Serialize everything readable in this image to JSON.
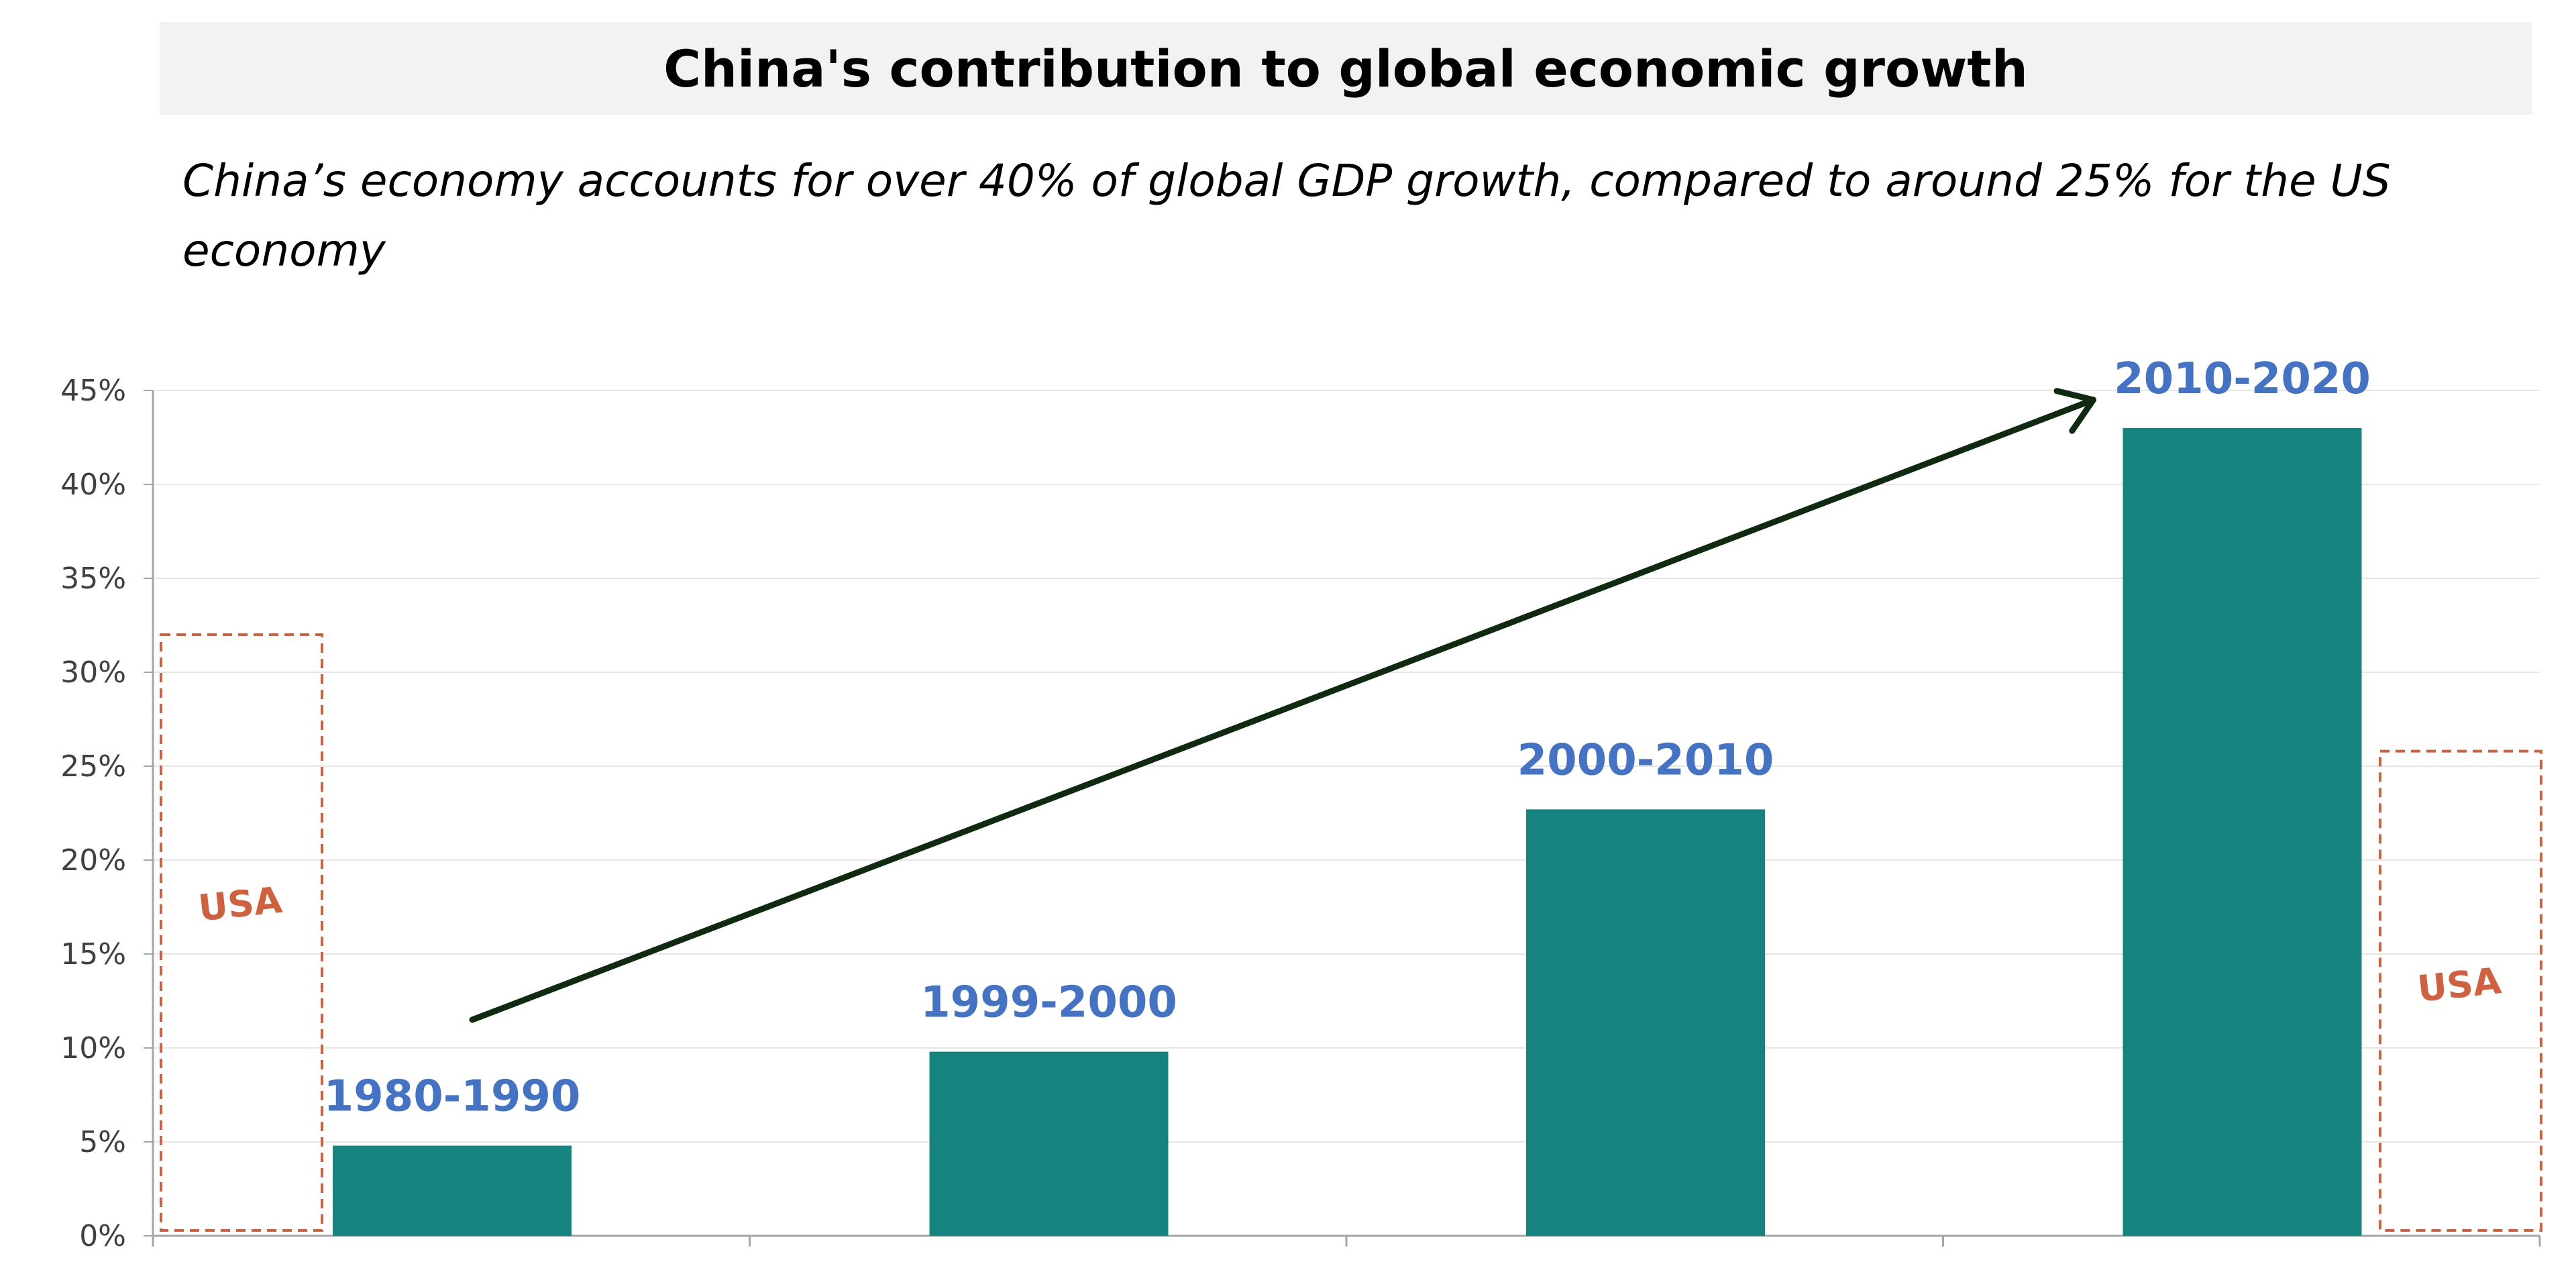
{
  "title": "China's contribution to global economic growth",
  "subtitle": "China’s economy accounts for over 40% of global GDP growth, compared to around 25% for the US economy",
  "colors": {
    "bar": "#158480",
    "category_label": "#4472c4",
    "usa": "#d0603e",
    "arrow": "#0f2a10",
    "grid": "#e6e6e6",
    "axis": "#a6a6a6"
  },
  "chart_data": {
    "type": "bar",
    "title": "China's contribution to global economic growth",
    "xlabel": "",
    "ylabel": "",
    "ylim": [
      0,
      45
    ],
    "ytick_step": 5,
    "ytick_labels": [
      "0%",
      "5%",
      "10%",
      "15%",
      "20%",
      "25%",
      "30%",
      "35%",
      "40%",
      "45%"
    ],
    "categories": [
      "1980-1990",
      "1999-2000",
      "2000-2010",
      "2010-2020"
    ],
    "values": [
      4.8,
      9.8,
      22.7,
      43.0
    ],
    "grid": true,
    "annotations": {
      "trend_arrow": {
        "from_value": 11.5,
        "to_value": 44.5,
        "from_category": 0,
        "to_category": 3
      },
      "usa_boxes": [
        {
          "label": "USA",
          "value": 32,
          "near_category": 0,
          "side": "left"
        },
        {
          "label": "USA",
          "value": 25.8,
          "near_category": 3,
          "side": "right"
        }
      ]
    }
  }
}
